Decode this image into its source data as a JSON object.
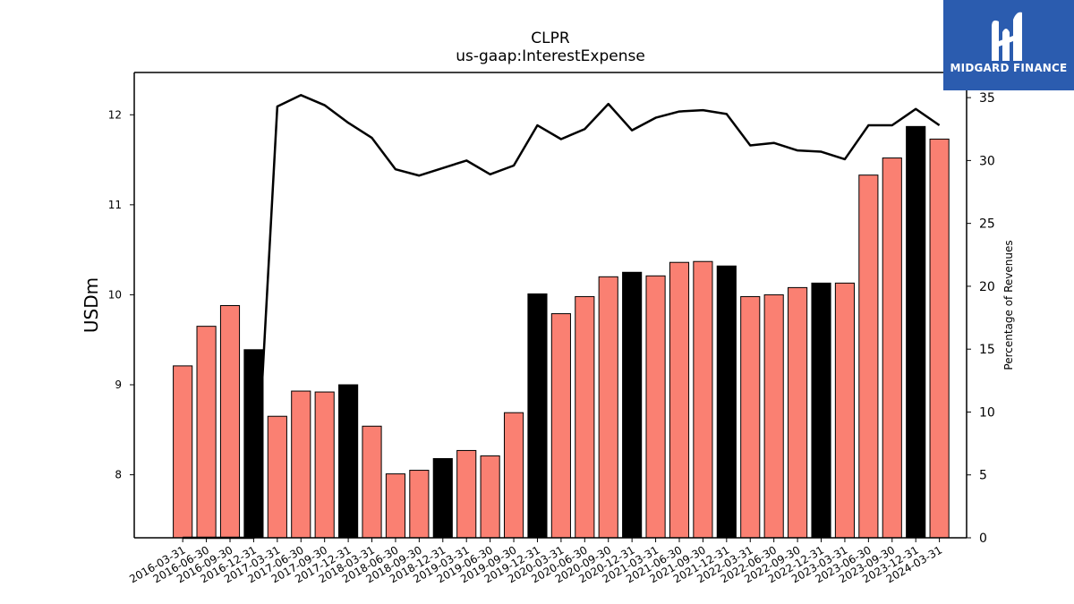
{
  "chart_data": {
    "type": "bar",
    "title": "CLPR",
    "subtitle": "us-gaap:InterestExpense",
    "ylabel": "USDm",
    "y2label": "Percentage of Revenues",
    "ylim": [
      7.3,
      12.47
    ],
    "y2lim": [
      0,
      37
    ],
    "yticks": [
      8,
      9,
      10,
      11,
      12
    ],
    "y2ticks": [
      0,
      5,
      10,
      15,
      20,
      25,
      30,
      35
    ],
    "categories": [
      "2016-03-31",
      "2016-06-30",
      "2016-09-30",
      "2016-12-31",
      "2017-03-31",
      "2017-06-30",
      "2017-09-30",
      "2017-12-31",
      "2018-03-31",
      "2018-06-30",
      "2018-09-30",
      "2018-12-31",
      "2019-03-31",
      "2019-06-30",
      "2019-09-30",
      "2019-12-31",
      "2020-03-31",
      "2020-06-30",
      "2020-09-30",
      "2020-12-31",
      "2021-03-31",
      "2021-06-30",
      "2021-09-30",
      "2021-12-31",
      "2022-03-31",
      "2022-06-30",
      "2022-09-30",
      "2022-12-31",
      "2023-03-31",
      "2023-06-30",
      "2023-09-30",
      "2023-12-31",
      "2024-03-31"
    ],
    "series": [
      {
        "kind": "bar",
        "values": [
          9.21,
          9.65,
          9.88,
          9.39,
          8.65,
          8.93,
          8.92,
          9.0,
          8.54,
          8.01,
          8.05,
          8.18,
          8.27,
          8.21,
          8.69,
          10.01,
          9.79,
          9.98,
          10.2,
          10.25,
          10.21,
          10.36,
          10.37,
          10.32,
          9.98,
          10.0,
          10.08,
          10.13,
          10.13,
          11.33,
          11.52,
          11.87,
          11.73
        ],
        "highlight": [
          false,
          false,
          false,
          true,
          false,
          false,
          false,
          true,
          false,
          false,
          false,
          true,
          false,
          false,
          false,
          true,
          false,
          false,
          false,
          true,
          false,
          false,
          false,
          true,
          false,
          false,
          false,
          true,
          false,
          false,
          false,
          true,
          false
        ],
        "color": "#fa8072",
        "highlight_color": "#000000"
      },
      {
        "kind": "line",
        "axis": "right",
        "values": [
          0,
          0,
          0,
          0,
          34.3,
          35.2,
          34.4,
          33.0,
          31.8,
          29.3,
          28.8,
          29.4,
          30.0,
          28.9,
          29.6,
          32.8,
          31.7,
          32.5,
          34.5,
          32.4,
          33.4,
          33.9,
          34.0,
          33.7,
          31.2,
          31.4,
          30.8,
          30.7,
          30.1,
          32.8,
          32.8,
          34.1,
          32.8
        ],
        "color": "#000000"
      }
    ],
    "grid": false,
    "legend": "none"
  },
  "logo": {
    "text": "MIDGARD FINANCE",
    "background": "#2b5caf"
  }
}
